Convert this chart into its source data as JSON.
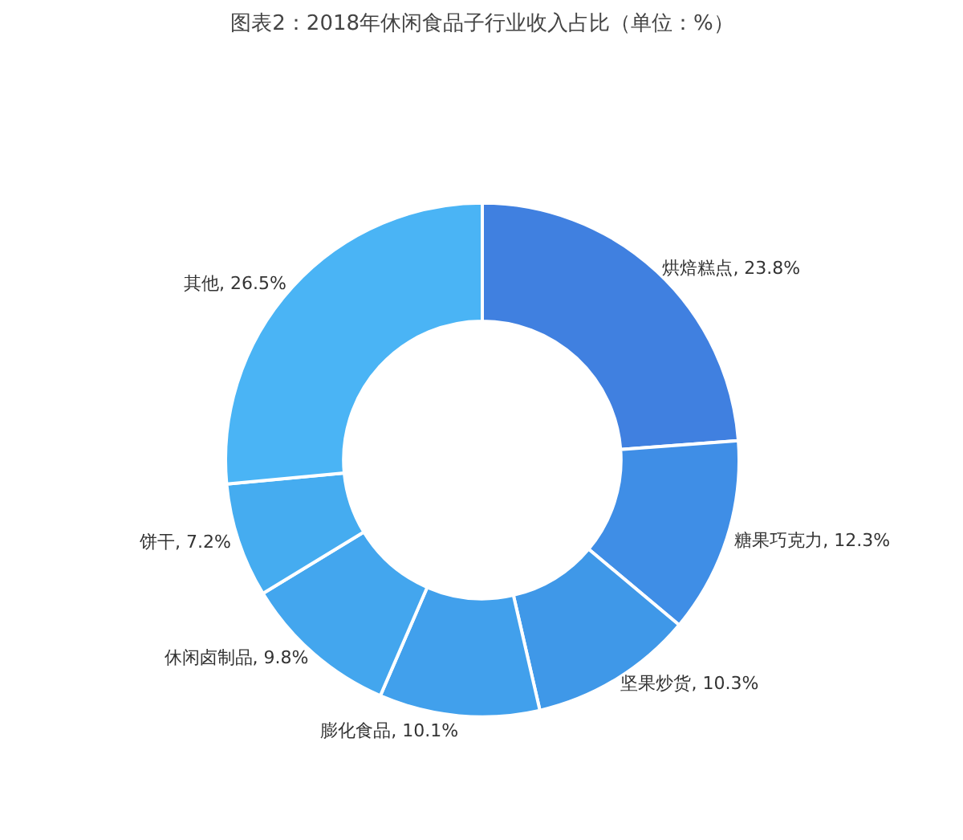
{
  "chart_data": {
    "type": "donut",
    "title": "图表2：2018年休闲食品子行业收入占比（单位：%）",
    "categories": [
      "烘焙糕点",
      "糖果巧克力",
      "坚果炒货",
      "膨化食品",
      "休闲卤制品",
      "饼干",
      "其他"
    ],
    "values": [
      23.8,
      12.3,
      10.3,
      10.1,
      9.8,
      7.2,
      26.5
    ],
    "colors": [
      "#4080e0",
      "#3f8ee6",
      "#3f98e8",
      "#41a0ec",
      "#43a6ee",
      "#45acf0",
      "#4ab4f5"
    ],
    "value_labels": [
      ", 23.8%",
      ", 12.3%",
      ", 10.3%",
      ", 10.1%",
      ", 9.8%",
      ", 7.2%",
      ", 26.5%"
    ],
    "legend": false
  }
}
